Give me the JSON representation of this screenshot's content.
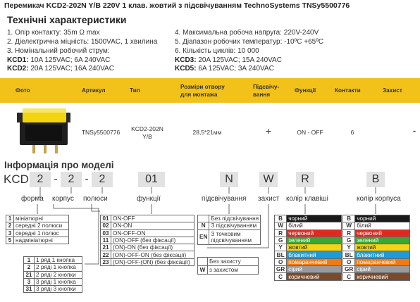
{
  "title": "Перемикач KCD2-202N Y/B 220V 1 клав. жовтий з підсвічуванням TechnoSystems TNSy5500776",
  "specs": {
    "heading": "Технічні характеристики",
    "left": [
      "1. Опір контакту: 35m Ω  max",
      "2. Діелектрична міцність:  1500VAC, 1 хвилина",
      "3. Номінальний робочий струм:"
    ],
    "right": [
      "4. Максимальна робоча напруга: 220V-240V",
      "5. Діапазон робочих температур: -10ºC +65ºC",
      "6. Кількість циклів: 10 000"
    ],
    "kcd1_label": "KCD1:",
    "kcd1_value": " 10A 125VAC; 6A 240VAC",
    "kcd2_label": "KCD2:",
    "kcd2_value": " 20A 125VAC; 16A 240VAC",
    "kcd3_label": "KCD3:",
    "kcd3_value": " 20A 125VAC; 15A 240VAC",
    "kcd5_label": "KCD5:",
    "kcd5_value": " 6A 125VAC; 3A 240VAC"
  },
  "table": {
    "headers": [
      "Фото",
      "Артикул",
      "Тип",
      "Розміри отвору для монтажа",
      "Підсвічу-вання",
      "Функції",
      "Контакти",
      "Захист"
    ],
    "row": {
      "article": "TNSy5500776",
      "type": "KCD2-202N Y/B",
      "size": "28,5*21мм",
      "light": "+",
      "function": "ON - OFF",
      "contacts": "6",
      "protection": "-"
    }
  },
  "model": {
    "heading": "Інформація про моделі",
    "codes": [
      "KCD",
      "2",
      "-",
      "2",
      "-",
      "2",
      "01",
      "N",
      "W",
      "R",
      "B"
    ],
    "labels": {
      "form": "форма",
      "body": "корпус",
      "poles": "полюси",
      "functions": "функції",
      "light": "підсвічування",
      "protect": "захист",
      "key_color": "колір клавіші",
      "body_color": "колір корпуса"
    },
    "form_rows": [
      [
        "1",
        "мініатюрні"
      ],
      [
        "2",
        "середні 2 полюси"
      ],
      [
        "3",
        "середні 1 полюс"
      ],
      [
        "5",
        "надмініатюрні"
      ]
    ],
    "poles_rows": [
      [
        "1",
        "1 ряд 1 кнопка"
      ],
      [
        "2",
        "2 ряді 1 кнопка"
      ],
      [
        "21",
        "2 ряді 2 кнопки"
      ],
      [
        "3",
        "3 ряді 1 кнопка"
      ],
      [
        "31",
        "3 ряді 3 кнопки"
      ]
    ],
    "func_rows": [
      [
        "01",
        "ON-OFF"
      ],
      [
        "02",
        "ON-ON"
      ],
      [
        "03",
        "ON-OFF-ON"
      ],
      [
        "11",
        "(ON)-OFF (без фіксації)"
      ],
      [
        "21",
        "(ON)-ON (без фіксації)"
      ],
      [
        "22",
        "(ON)-OFF-ON (без фіксації)"
      ],
      [
        "23",
        "(ON)-OFF-(ON) (без фіксації)"
      ]
    ],
    "light_rows": [
      [
        "",
        "Без підсвічування"
      ],
      [
        "N",
        "З підсвічуванням"
      ],
      [
        "EN",
        "З точковим підсвічуванням"
      ]
    ],
    "protect_rows": [
      [
        "",
        "Без захисту"
      ],
      [
        "W",
        "з захистом"
      ]
    ],
    "colors": [
      {
        "code": "B",
        "name": "чорний",
        "color": "#1a1a1a",
        "text": "#ffffff"
      },
      {
        "code": "W",
        "name": "білий",
        "color": "#ffffff",
        "text": "#222222"
      },
      {
        "code": "R",
        "name": "червоний",
        "color": "#e02a1e",
        "text": "#ffffff"
      },
      {
        "code": "G",
        "name": "зелений",
        "color": "#3aa635",
        "text": "#ffffff"
      },
      {
        "code": "Y",
        "name": "жовтий",
        "color": "#f2d516",
        "text": "#222222"
      },
      {
        "code": "BL",
        "name": "блакитний",
        "color": "#1f9ad6",
        "text": "#ffffff"
      },
      {
        "code": "O",
        "name": "помаранчевий",
        "color": "#f07a12",
        "text": "#ffffff"
      },
      {
        "code": "GR",
        "name": "сірий",
        "color": "#9a9a9a",
        "text": "#ffffff"
      },
      {
        "code": "C",
        "name": "коричневий",
        "color": "#7a4a2a",
        "text": "#ffffff"
      }
    ]
  }
}
